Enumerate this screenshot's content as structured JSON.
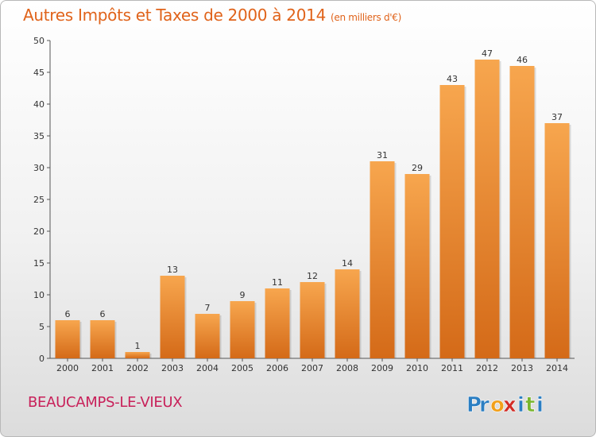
{
  "title": "Autres Impôts et Taxes de 2000 à 2014",
  "unit_note": "(en milliers d'€)",
  "commune": "BEAUCAMPS-LE-VIEUX",
  "logo": {
    "text": "Proxiti",
    "letters": [
      "P",
      "r",
      "o",
      "x",
      "i",
      "t",
      "i"
    ],
    "colors": [
      "#2b7ec2",
      "#2b7ec2",
      "#f2a01a",
      "#d22c26",
      "#2b7ec2",
      "#7ab62e",
      "#2b7ec2"
    ]
  },
  "colors": {
    "bar_top": "#f7a64e",
    "bar_bottom": "#d46a18",
    "title": "#e0631a",
    "commune": "#c8215a"
  },
  "chart_data": {
    "type": "bar",
    "categories": [
      "2000",
      "2001",
      "2002",
      "2003",
      "2004",
      "2005",
      "2006",
      "2007",
      "2008",
      "2009",
      "2010",
      "2011",
      "2012",
      "2013",
      "2014"
    ],
    "values": [
      6,
      6,
      1,
      13,
      7,
      9,
      11,
      12,
      14,
      31,
      29,
      43,
      47,
      46,
      37
    ],
    "ylim": [
      0,
      50
    ],
    "yticks": [
      0,
      5,
      10,
      15,
      20,
      25,
      30,
      35,
      40,
      45,
      50
    ],
    "grid": false,
    "data_labels": true
  }
}
